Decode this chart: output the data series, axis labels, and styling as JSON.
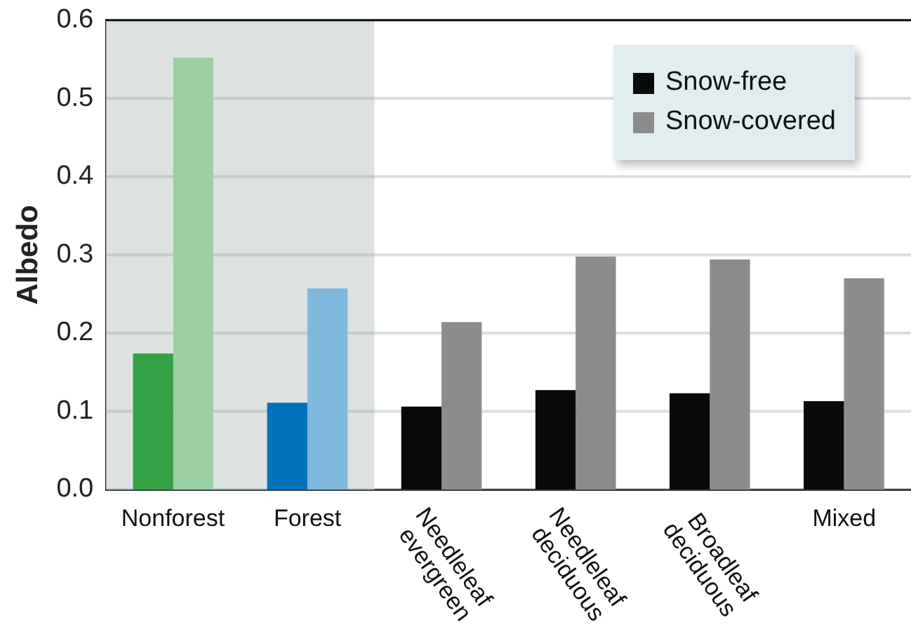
{
  "chart_data": {
    "type": "bar",
    "ylabel": "Albedo",
    "categories": [
      "Nonforest",
      "Forest",
      "Needleleaf evergreen",
      "Needleleaf deciduous",
      "Broadleaf deciduous",
      "Mixed"
    ],
    "series": [
      {
        "name": "Snow-free",
        "color": "#0a0a0a",
        "colors": [
          "#35a246",
          "#0072bb",
          "#0a0a0a",
          "#0a0a0a",
          "#0a0a0a",
          "#0a0a0a"
        ],
        "values": [
          0.174,
          0.111,
          0.106,
          0.127,
          0.123,
          0.113
        ]
      },
      {
        "name": "Snow-covered",
        "color": "#8c8c8c",
        "colors": [
          "#9ad0a2",
          "#80b8dd",
          "#8c8c8c",
          "#8c8c8c",
          "#8c8c8c",
          "#8c8c8c"
        ],
        "values": [
          0.552,
          0.257,
          0.214,
          0.298,
          0.294,
          0.27
        ]
      }
    ],
    "ylim": [
      0,
      0.6
    ],
    "yticks": [
      {
        "value": 0,
        "label": "0.0"
      },
      0.1,
      0.2,
      0.3,
      0.4,
      0.5,
      0.6
    ],
    "bands": [
      {
        "axis": "x",
        "from": "Nonforest",
        "to": "Forest",
        "color": "#dde2e1"
      }
    ],
    "grid": "y",
    "legend": "top right"
  }
}
